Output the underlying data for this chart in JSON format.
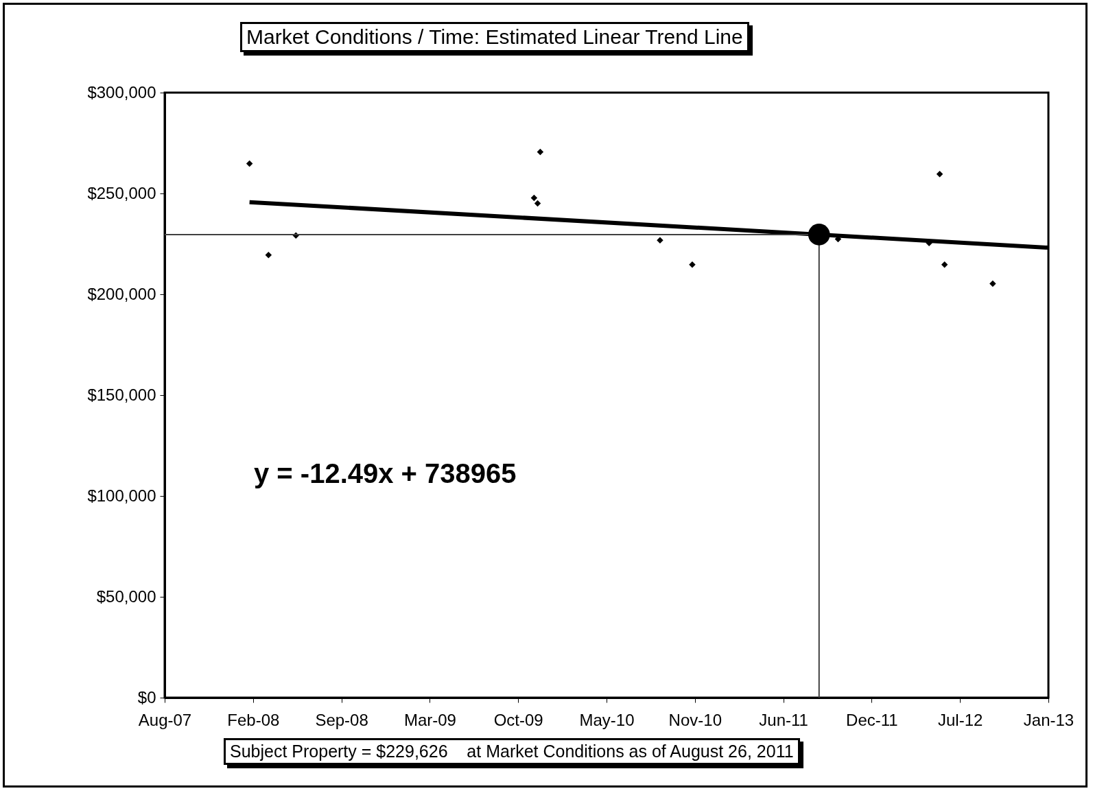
{
  "chart_data": {
    "type": "scatter",
    "title": "Market Conditions / Time: Estimated Linear Trend Line",
    "series": [
      {
        "type": "scatter",
        "color": "#000000",
        "marker": "diamond",
        "x": [
          "2008-02-14",
          "2008-03-28",
          "2008-05-29",
          "2009-11-19",
          "2009-11-27",
          "2009-12-03",
          "2010-08-31",
          "2010-11-12",
          "2011-10-08",
          "2012-05-01",
          "2012-05-25",
          "2012-06-05",
          "2012-09-22"
        ],
        "values": [
          264800,
          219500,
          229200,
          247800,
          245100,
          270600,
          226800,
          214700,
          227400,
          225400,
          259600,
          214700,
          205300
        ]
      },
      {
        "type": "line",
        "color": "#000000",
        "x": [
          "2008-02-14",
          "2013-01-26"
        ],
        "values": [
          245700,
          223100
        ]
      },
      {
        "type": "line",
        "color": "#404040",
        "x": [
          "2007-08-06",
          "2011-08-26",
          "2011-08-26"
        ],
        "values": [
          229626,
          229626,
          0
        ]
      },
      {
        "type": "scatter",
        "color": "#000000",
        "marker": "circle",
        "x": [
          "2011-08-26"
        ],
        "values": [
          229626
        ]
      }
    ],
    "xlim": [
      "2007-08-06",
      "2013-01-26"
    ],
    "xticks": [
      {
        "value": "2007-08-06",
        "label": "Aug-07"
      },
      {
        "value": "2008-02-22",
        "label": "Feb-08"
      },
      {
        "value": "2008-09-09",
        "label": "Sep-08"
      },
      {
        "value": "2009-03-28",
        "label": "Mar-09"
      },
      {
        "value": "2009-10-14",
        "label": "Oct-09"
      },
      {
        "value": "2010-05-02",
        "label": "May-10"
      },
      {
        "value": "2010-11-18",
        "label": "Nov-10"
      },
      {
        "value": "2011-06-06",
        "label": "Jun-11"
      },
      {
        "value": "2011-12-23",
        "label": "Dec-11"
      },
      {
        "value": "2012-07-10",
        "label": "Jul-12"
      },
      {
        "value": "2013-01-26",
        "label": "Jan-13"
      }
    ],
    "ylim": [
      0,
      300000
    ],
    "yticks": [
      {
        "value": 0,
        "label": "$0"
      },
      {
        "value": 50000,
        "label": "$50,000"
      },
      {
        "value": 100000,
        "label": "$100,000"
      },
      {
        "value": 150000,
        "label": "$150,000"
      },
      {
        "value": 200000,
        "label": "$200,000"
      },
      {
        "value": 250000,
        "label": "$250,000"
      },
      {
        "value": 300000,
        "label": "$300,000"
      }
    ],
    "annotations": [
      "y = -12.49x + 738965",
      "Subject Property = $229,626    at Market Conditions as of August 26, 2011"
    ],
    "grid": false
  }
}
